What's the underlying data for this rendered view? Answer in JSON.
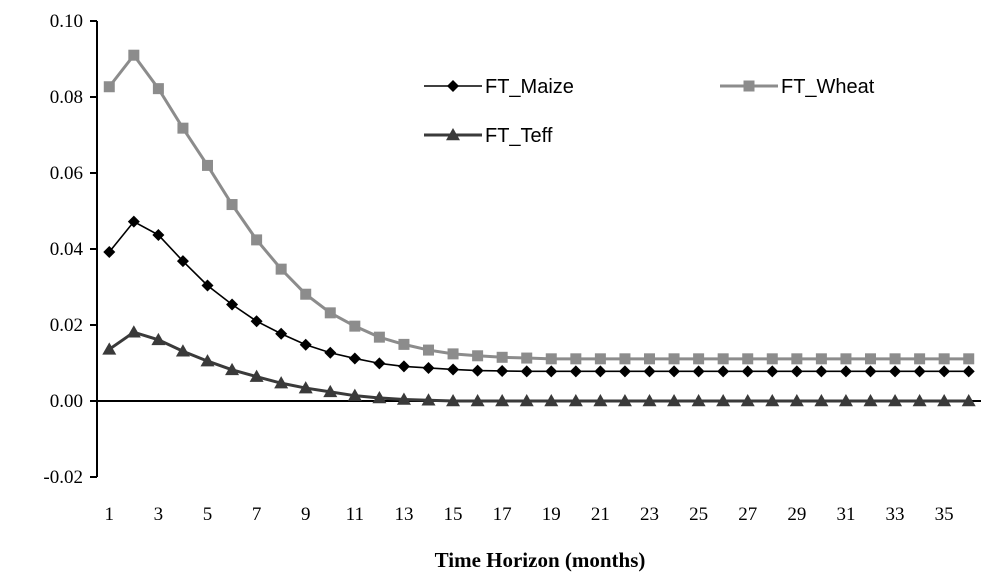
{
  "chart_data": {
    "type": "line",
    "xlabel": "Time Horizon (months)",
    "ylabel": "",
    "title": "",
    "xlim": [
      0.5,
      36.5
    ],
    "ylim": [
      -0.02,
      0.1
    ],
    "x_ticks": [
      1,
      3,
      5,
      7,
      9,
      11,
      13,
      15,
      17,
      19,
      21,
      23,
      25,
      27,
      29,
      31,
      33,
      35
    ],
    "y_ticks": [
      -0.02,
      0.0,
      0.02,
      0.04,
      0.06,
      0.08,
      0.1
    ],
    "y_tick_labels": [
      "-0.02",
      "0.00",
      "0.02",
      "0.04",
      "0.06",
      "0.08",
      "0.10"
    ],
    "grid": false,
    "legend_position": "top-right",
    "x": [
      1,
      2,
      3,
      4,
      5,
      6,
      7,
      8,
      9,
      10,
      11,
      12,
      13,
      14,
      15,
      16,
      17,
      18,
      19,
      20,
      21,
      22,
      23,
      24,
      25,
      26,
      27,
      28,
      29,
      30,
      31,
      32,
      33,
      34,
      35,
      36
    ],
    "series": [
      {
        "name": "FT_Maize",
        "color": "#000000",
        "marker": "diamond",
        "values": [
          0.0392,
          0.0472,
          0.0437,
          0.0368,
          0.0304,
          0.0254,
          0.021,
          0.0177,
          0.0148,
          0.0127,
          0.0112,
          0.0099,
          0.0091,
          0.0087,
          0.0083,
          0.008,
          0.0079,
          0.0078,
          0.0078,
          0.0078,
          0.0078,
          0.0078,
          0.0078,
          0.0078,
          0.0078,
          0.0078,
          0.0078,
          0.0078,
          0.0078,
          0.0078,
          0.0078,
          0.0078,
          0.0078,
          0.0078,
          0.0078,
          0.0078
        ]
      },
      {
        "name": "FT_Wheat",
        "color": "#8c8c8c",
        "marker": "square",
        "values": [
          0.0827,
          0.091,
          0.0822,
          0.0718,
          0.062,
          0.0517,
          0.0424,
          0.0347,
          0.0281,
          0.0232,
          0.0197,
          0.0168,
          0.0149,
          0.0134,
          0.0124,
          0.0119,
          0.0115,
          0.0113,
          0.0111,
          0.0111,
          0.0111,
          0.0111,
          0.0111,
          0.0111,
          0.0111,
          0.0111,
          0.0111,
          0.0111,
          0.0111,
          0.0111,
          0.0111,
          0.0111,
          0.0111,
          0.0111,
          0.0111,
          0.0111
        ]
      },
      {
        "name": "FT_Teff",
        "color": "#3a3a3a",
        "marker": "triangle",
        "values": [
          0.0136,
          0.0181,
          0.0161,
          0.0131,
          0.0105,
          0.0082,
          0.0064,
          0.0047,
          0.0034,
          0.0024,
          0.0014,
          0.0008,
          0.0004,
          0.0002,
          0.0,
          0.0,
          0.0,
          0.0,
          0.0,
          0.0,
          0.0,
          0.0,
          0.0,
          0.0,
          0.0,
          0.0,
          0.0,
          0.0,
          0.0,
          0.0,
          0.0,
          0.0,
          0.0,
          0.0,
          0.0,
          0.0
        ]
      }
    ]
  }
}
